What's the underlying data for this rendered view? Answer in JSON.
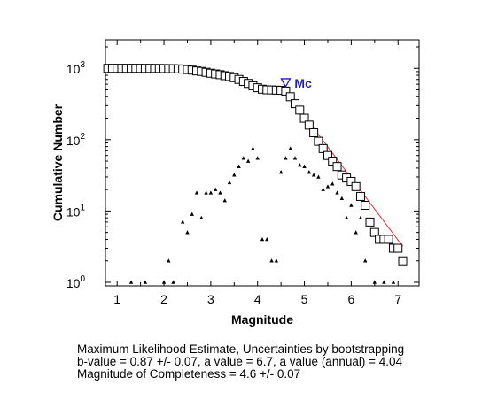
{
  "chart_data": {
    "type": "scatter",
    "xlabel": "Magnitude",
    "ylabel": "Cumulative Number",
    "xlim": [
      0.75,
      7.45
    ],
    "ylim_log10": [
      -0.05,
      3.4
    ],
    "y_scale": "log",
    "x_ticks": [
      1,
      2,
      3,
      4,
      5,
      6,
      7
    ],
    "y_ticks": [
      {
        "base": "10",
        "exp": "0",
        "value": 1
      },
      {
        "base": "10",
        "exp": "1",
        "value": 10
      },
      {
        "base": "10",
        "exp": "2",
        "value": 100
      },
      {
        "base": "10",
        "exp": "3",
        "value": 1000
      }
    ],
    "grid": false,
    "series": [
      {
        "marker": "square",
        "x": [
          0.8,
          0.9,
          1.0,
          1.1,
          1.2,
          1.3,
          1.4,
          1.5,
          1.6,
          1.7,
          1.8,
          1.9,
          2.0,
          2.1,
          2.2,
          2.3,
          2.4,
          2.5,
          2.6,
          2.7,
          2.8,
          2.9,
          3.0,
          3.1,
          3.2,
          3.3,
          3.4,
          3.5,
          3.6,
          3.7,
          3.8,
          3.9,
          4.0,
          4.1,
          4.2,
          4.3,
          4.4,
          4.5,
          4.6,
          4.7,
          4.8,
          4.9,
          5.0,
          5.1,
          5.2,
          5.3,
          5.4,
          5.5,
          5.6,
          5.7,
          5.8,
          5.9,
          6.0,
          6.1,
          6.2,
          6.3,
          6.4,
          6.5,
          6.6,
          6.7,
          6.8,
          6.9,
          7.0,
          7.1
        ],
        "y": [
          1000,
          1000,
          1000,
          1000,
          1000,
          1000,
          1000,
          1000,
          999,
          999,
          998,
          997,
          995,
          993,
          990,
          985,
          975,
          960,
          945,
          920,
          905,
          880,
          855,
          835,
          815,
          790,
          770,
          740,
          700,
          655,
          615,
          570,
          535,
          510,
          500,
          498,
          495,
          492,
          480,
          400,
          320,
          260,
          200,
          160,
          125,
          95,
          75,
          60,
          50,
          42,
          32,
          29,
          26,
          22,
          16,
          12,
          7,
          5,
          4,
          4,
          4,
          3,
          3,
          2
        ]
      },
      {
        "marker": "triangle",
        "x": [
          1.3,
          1.6,
          2.0,
          2.1,
          2.2,
          2.4,
          2.5,
          2.6,
          2.7,
          2.8,
          2.9,
          3.0,
          3.1,
          3.2,
          3.3,
          3.4,
          3.5,
          3.6,
          3.7,
          3.8,
          3.9,
          4.0,
          4.1,
          4.2,
          4.3,
          4.4,
          4.5,
          4.6,
          4.7,
          4.8,
          4.9,
          5.0,
          5.1,
          5.2,
          5.3,
          5.4,
          5.5,
          5.6,
          5.7,
          5.8,
          5.9,
          6.0,
          6.1,
          6.2,
          6.3,
          6.5,
          6.7,
          6.9,
          7.1
        ],
        "y": [
          1,
          1,
          1,
          2,
          1,
          7,
          5,
          9,
          18,
          8,
          18,
          18,
          20,
          18,
          14,
          25,
          32,
          42,
          55,
          50,
          75,
          55,
          4,
          4,
          2,
          2,
          35,
          55,
          75,
          55,
          44,
          42,
          35,
          32,
          30,
          20,
          22,
          24,
          18,
          15,
          8,
          12,
          5,
          8,
          2,
          1,
          1,
          1,
          2
        ]
      },
      {
        "marker": "line",
        "color": "#e03030",
        "x": [
          4.6,
          7.1
        ],
        "y": [
          480,
          3.2
        ]
      }
    ],
    "annotations": [
      {
        "text": "Mc",
        "symbol": "▽",
        "x": 4.6,
        "y": 620
      }
    ]
  },
  "stats": {
    "line1": "Maximum Likelihood Estimate, Uncertainties by bootstrapping",
    "line2": "b-value = 0.87 +/- 0.07,  a value = 6.7,  a value (annual) = 4.04",
    "line3": "Magnitude of Completeness = 4.6 +/- 0.07"
  }
}
